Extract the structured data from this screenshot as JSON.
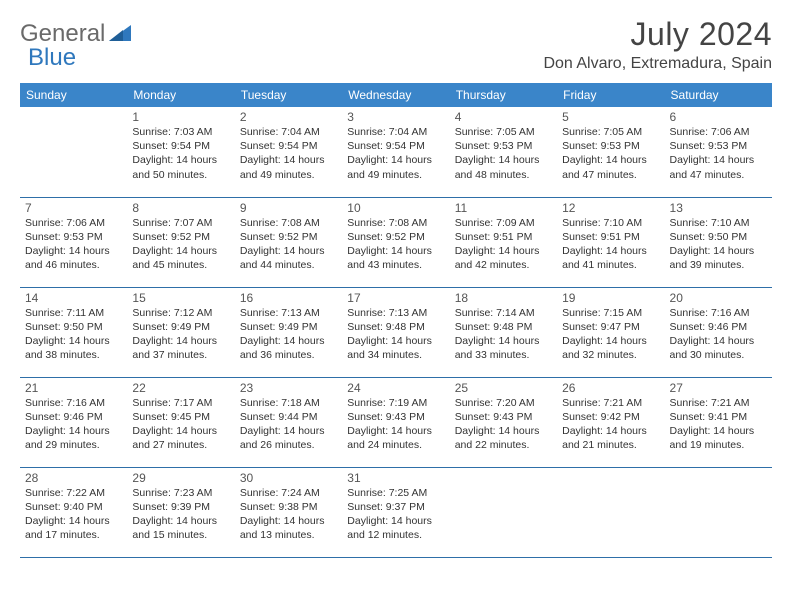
{
  "logo": {
    "general": "General",
    "blue": "Blue"
  },
  "header": {
    "month_title": "July 2024",
    "location": "Don Alvaro, Extremadura, Spain"
  },
  "calendar": {
    "day_headers": [
      "Sunday",
      "Monday",
      "Tuesday",
      "Wednesday",
      "Thursday",
      "Friday",
      "Saturday"
    ],
    "header_bg": "#3a85c9",
    "header_fg": "#ffffff",
    "border_color": "#2e6fa8",
    "weeks": [
      [
        null,
        {
          "n": "1",
          "sr": "Sunrise: 7:03 AM",
          "ss": "Sunset: 9:54 PM",
          "d1": "Daylight: 14 hours",
          "d2": "and 50 minutes."
        },
        {
          "n": "2",
          "sr": "Sunrise: 7:04 AM",
          "ss": "Sunset: 9:54 PM",
          "d1": "Daylight: 14 hours",
          "d2": "and 49 minutes."
        },
        {
          "n": "3",
          "sr": "Sunrise: 7:04 AM",
          "ss": "Sunset: 9:54 PM",
          "d1": "Daylight: 14 hours",
          "d2": "and 49 minutes."
        },
        {
          "n": "4",
          "sr": "Sunrise: 7:05 AM",
          "ss": "Sunset: 9:53 PM",
          "d1": "Daylight: 14 hours",
          "d2": "and 48 minutes."
        },
        {
          "n": "5",
          "sr": "Sunrise: 7:05 AM",
          "ss": "Sunset: 9:53 PM",
          "d1": "Daylight: 14 hours",
          "d2": "and 47 minutes."
        },
        {
          "n": "6",
          "sr": "Sunrise: 7:06 AM",
          "ss": "Sunset: 9:53 PM",
          "d1": "Daylight: 14 hours",
          "d2": "and 47 minutes."
        }
      ],
      [
        {
          "n": "7",
          "sr": "Sunrise: 7:06 AM",
          "ss": "Sunset: 9:53 PM",
          "d1": "Daylight: 14 hours",
          "d2": "and 46 minutes."
        },
        {
          "n": "8",
          "sr": "Sunrise: 7:07 AM",
          "ss": "Sunset: 9:52 PM",
          "d1": "Daylight: 14 hours",
          "d2": "and 45 minutes."
        },
        {
          "n": "9",
          "sr": "Sunrise: 7:08 AM",
          "ss": "Sunset: 9:52 PM",
          "d1": "Daylight: 14 hours",
          "d2": "and 44 minutes."
        },
        {
          "n": "10",
          "sr": "Sunrise: 7:08 AM",
          "ss": "Sunset: 9:52 PM",
          "d1": "Daylight: 14 hours",
          "d2": "and 43 minutes."
        },
        {
          "n": "11",
          "sr": "Sunrise: 7:09 AM",
          "ss": "Sunset: 9:51 PM",
          "d1": "Daylight: 14 hours",
          "d2": "and 42 minutes."
        },
        {
          "n": "12",
          "sr": "Sunrise: 7:10 AM",
          "ss": "Sunset: 9:51 PM",
          "d1": "Daylight: 14 hours",
          "d2": "and 41 minutes."
        },
        {
          "n": "13",
          "sr": "Sunrise: 7:10 AM",
          "ss": "Sunset: 9:50 PM",
          "d1": "Daylight: 14 hours",
          "d2": "and 39 minutes."
        }
      ],
      [
        {
          "n": "14",
          "sr": "Sunrise: 7:11 AM",
          "ss": "Sunset: 9:50 PM",
          "d1": "Daylight: 14 hours",
          "d2": "and 38 minutes."
        },
        {
          "n": "15",
          "sr": "Sunrise: 7:12 AM",
          "ss": "Sunset: 9:49 PM",
          "d1": "Daylight: 14 hours",
          "d2": "and 37 minutes."
        },
        {
          "n": "16",
          "sr": "Sunrise: 7:13 AM",
          "ss": "Sunset: 9:49 PM",
          "d1": "Daylight: 14 hours",
          "d2": "and 36 minutes."
        },
        {
          "n": "17",
          "sr": "Sunrise: 7:13 AM",
          "ss": "Sunset: 9:48 PM",
          "d1": "Daylight: 14 hours",
          "d2": "and 34 minutes."
        },
        {
          "n": "18",
          "sr": "Sunrise: 7:14 AM",
          "ss": "Sunset: 9:48 PM",
          "d1": "Daylight: 14 hours",
          "d2": "and 33 minutes."
        },
        {
          "n": "19",
          "sr": "Sunrise: 7:15 AM",
          "ss": "Sunset: 9:47 PM",
          "d1": "Daylight: 14 hours",
          "d2": "and 32 minutes."
        },
        {
          "n": "20",
          "sr": "Sunrise: 7:16 AM",
          "ss": "Sunset: 9:46 PM",
          "d1": "Daylight: 14 hours",
          "d2": "and 30 minutes."
        }
      ],
      [
        {
          "n": "21",
          "sr": "Sunrise: 7:16 AM",
          "ss": "Sunset: 9:46 PM",
          "d1": "Daylight: 14 hours",
          "d2": "and 29 minutes."
        },
        {
          "n": "22",
          "sr": "Sunrise: 7:17 AM",
          "ss": "Sunset: 9:45 PM",
          "d1": "Daylight: 14 hours",
          "d2": "and 27 minutes."
        },
        {
          "n": "23",
          "sr": "Sunrise: 7:18 AM",
          "ss": "Sunset: 9:44 PM",
          "d1": "Daylight: 14 hours",
          "d2": "and 26 minutes."
        },
        {
          "n": "24",
          "sr": "Sunrise: 7:19 AM",
          "ss": "Sunset: 9:43 PM",
          "d1": "Daylight: 14 hours",
          "d2": "and 24 minutes."
        },
        {
          "n": "25",
          "sr": "Sunrise: 7:20 AM",
          "ss": "Sunset: 9:43 PM",
          "d1": "Daylight: 14 hours",
          "d2": "and 22 minutes."
        },
        {
          "n": "26",
          "sr": "Sunrise: 7:21 AM",
          "ss": "Sunset: 9:42 PM",
          "d1": "Daylight: 14 hours",
          "d2": "and 21 minutes."
        },
        {
          "n": "27",
          "sr": "Sunrise: 7:21 AM",
          "ss": "Sunset: 9:41 PM",
          "d1": "Daylight: 14 hours",
          "d2": "and 19 minutes."
        }
      ],
      [
        {
          "n": "28",
          "sr": "Sunrise: 7:22 AM",
          "ss": "Sunset: 9:40 PM",
          "d1": "Daylight: 14 hours",
          "d2": "and 17 minutes."
        },
        {
          "n": "29",
          "sr": "Sunrise: 7:23 AM",
          "ss": "Sunset: 9:39 PM",
          "d1": "Daylight: 14 hours",
          "d2": "and 15 minutes."
        },
        {
          "n": "30",
          "sr": "Sunrise: 7:24 AM",
          "ss": "Sunset: 9:38 PM",
          "d1": "Daylight: 14 hours",
          "d2": "and 13 minutes."
        },
        {
          "n": "31",
          "sr": "Sunrise: 7:25 AM",
          "ss": "Sunset: 9:37 PM",
          "d1": "Daylight: 14 hours",
          "d2": "and 12 minutes."
        },
        null,
        null,
        null
      ]
    ]
  }
}
